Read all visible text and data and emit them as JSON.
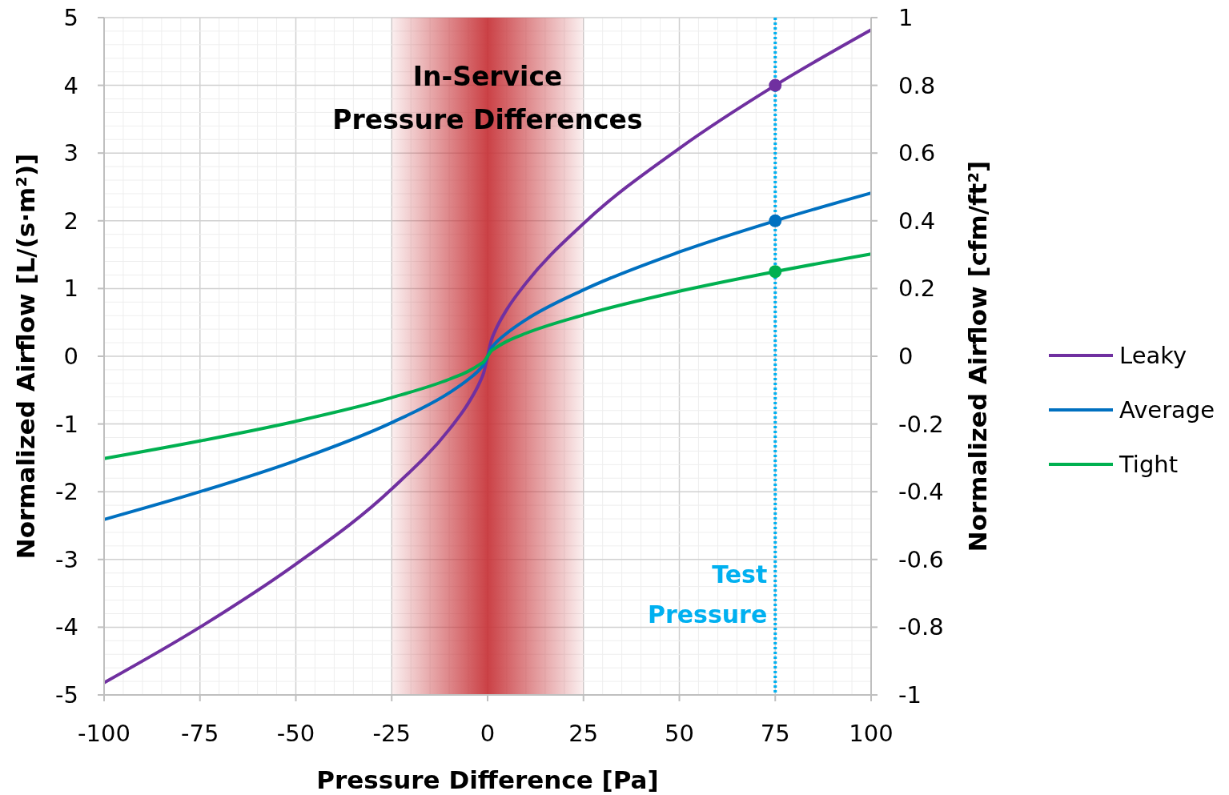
{
  "chart_data": {
    "type": "line",
    "xlabel": "Pressure Difference [Pa]",
    "ylabel": "Normalized Airflow [L/(s·m²)]",
    "y2label": "Normalized Airflow [cfm/ft²]",
    "x": [
      -100,
      -75,
      -50,
      -25,
      -10,
      -5,
      -2,
      -1,
      0,
      1,
      2,
      5,
      10,
      25,
      50,
      75,
      100
    ],
    "series": [
      {
        "name": "Leaky",
        "color": "#7030a0",
        "values": [
          -4.82,
          -4.0,
          -3.07,
          -1.96,
          -1.08,
          -0.69,
          -0.38,
          -0.24,
          0,
          0.24,
          0.38,
          0.69,
          1.08,
          1.96,
          3.07,
          4.0,
          4.82
        ]
      },
      {
        "name": "Average",
        "color": "#0070c0",
        "values": [
          -2.41,
          -2.0,
          -1.54,
          -0.98,
          -0.54,
          -0.34,
          -0.19,
          -0.12,
          0,
          0.12,
          0.19,
          0.34,
          0.54,
          0.98,
          1.54,
          2.0,
          2.41
        ]
      },
      {
        "name": "Tight",
        "color": "#00b050",
        "values": [
          -1.51,
          -1.25,
          -0.96,
          -0.61,
          -0.34,
          -0.22,
          -0.12,
          -0.08,
          0,
          0.08,
          0.12,
          0.22,
          0.34,
          0.61,
          0.96,
          1.25,
          1.51
        ]
      },
      {
        "type": "scatter",
        "marker": "circle",
        "color": "#7030a0",
        "values": [
          null,
          null,
          null,
          null,
          null,
          null,
          null,
          null,
          null,
          null,
          null,
          null,
          null,
          null,
          null,
          4.0,
          null
        ]
      },
      {
        "type": "scatter",
        "marker": "circle",
        "color": "#0070c0",
        "values": [
          null,
          null,
          null,
          null,
          null,
          null,
          null,
          null,
          null,
          null,
          null,
          null,
          null,
          null,
          null,
          2.0,
          null
        ]
      },
      {
        "type": "scatter",
        "marker": "circle",
        "color": "#00b050",
        "values": [
          null,
          null,
          null,
          null,
          null,
          null,
          null,
          null,
          null,
          null,
          null,
          null,
          null,
          null,
          null,
          1.25,
          null
        ]
      }
    ],
    "xlim": [
      -100,
      100
    ],
    "xticks": [
      -100,
      -75,
      -50,
      -25,
      0,
      25,
      50,
      75,
      100
    ],
    "ylim": [
      -5,
      5
    ],
    "yticks": [
      -5,
      -4,
      -3,
      -2,
      -1,
      0,
      1,
      2,
      3,
      4,
      5
    ],
    "y2lim": [
      -1,
      1
    ],
    "y2ticks": [
      -1,
      -0.8,
      -0.6,
      -0.4,
      -0.2,
      0,
      0.2,
      0.4,
      0.6,
      0.8,
      1
    ],
    "ref_lines": [
      {
        "axis": "x",
        "value": 75,
        "label": "Test Pressure",
        "color": "#00b0f0",
        "line_style": "dotted"
      }
    ],
    "bands": [
      {
        "axis": "x",
        "from": -25,
        "to": 25,
        "label": "In-Service Pressure Differences",
        "color": "#c8373c"
      }
    ],
    "grid": true,
    "legend": "right",
    "marker": "none",
    "line_style": "solid"
  }
}
